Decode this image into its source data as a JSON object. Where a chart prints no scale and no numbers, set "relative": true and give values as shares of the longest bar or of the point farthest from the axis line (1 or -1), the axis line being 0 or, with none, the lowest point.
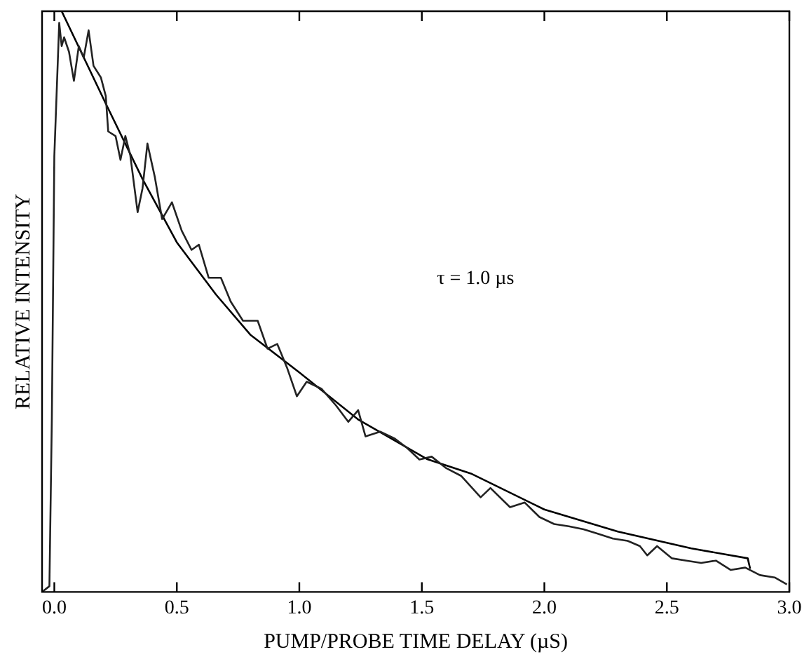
{
  "chart_data": {
    "type": "line",
    "relative": true,
    "xlabel": "PUMP/PROBE TIME DELAY (µS)",
    "ylabel": "RELATIVE INTENSITY",
    "annotations": [
      "τ = 1.0 µs"
    ],
    "xlim": [
      -0.05,
      3.0
    ],
    "xticks": [
      {
        "value": 0,
        "label": "0.0"
      },
      {
        "value": 0.5,
        "label": "0.5"
      },
      {
        "value": 1,
        "label": "1.0"
      },
      {
        "value": 1.5,
        "label": "1.5"
      },
      {
        "value": 2,
        "label": "2.0"
      },
      {
        "value": 2.5,
        "label": "2.5"
      },
      {
        "value": 3,
        "label": "3.0"
      }
    ],
    "grid": false,
    "legend": false,
    "marker": "none",
    "line_style": "solid",
    "series": [
      {
        "type": "line",
        "color": "#222222",
        "x": [
          -0.05,
          -0.02,
          -0.01,
          0.0,
          0.02,
          0.03,
          0.04,
          0.06,
          0.08,
          0.1,
          0.12,
          0.14,
          0.16,
          0.19,
          0.21,
          0.22,
          0.25,
          0.27,
          0.29,
          0.31,
          0.34,
          0.36,
          0.38,
          0.41,
          0.44,
          0.48,
          0.52,
          0.56,
          0.59,
          0.63,
          0.68,
          0.72,
          0.77,
          0.83,
          0.87,
          0.91,
          0.95,
          0.99,
          1.03,
          1.09,
          1.15,
          1.2,
          1.24,
          1.27,
          1.33,
          1.39,
          1.44,
          1.49,
          1.54,
          1.6,
          1.66,
          1.74,
          1.78,
          1.86,
          1.92,
          1.98,
          2.04,
          2.1,
          2.16,
          2.22,
          2.28,
          2.34,
          2.39,
          2.42,
          2.46,
          2.52,
          2.58,
          2.64,
          2.7,
          2.76,
          2.82,
          2.88,
          2.94,
          2.99
        ],
        "values": [
          0,
          0.01,
          0.3,
          0.75,
          0.98,
          0.94,
          0.955,
          0.93,
          0.88,
          0.94,
          0.92,
          0.967,
          0.906,
          0.886,
          0.854,
          0.793,
          0.785,
          0.744,
          0.785,
          0.752,
          0.654,
          0.695,
          0.772,
          0.715,
          0.642,
          0.671,
          0.622,
          0.589,
          0.598,
          0.541,
          0.541,
          0.5,
          0.467,
          0.467,
          0.419,
          0.427,
          0.386,
          0.337,
          0.362,
          0.35,
          0.321,
          0.293,
          0.313,
          0.268,
          0.276,
          0.264,
          0.248,
          0.228,
          0.233,
          0.213,
          0.2,
          0.163,
          0.179,
          0.146,
          0.154,
          0.129,
          0.117,
          0.113,
          0.108,
          0.1,
          0.092,
          0.088,
          0.079,
          0.063,
          0.079,
          0.058,
          0.054,
          0.05,
          0.054,
          0.038,
          0.042,
          0.029,
          0.025,
          0.013
        ]
      },
      {
        "type": "line",
        "color": "#000000",
        "x": [
          0.03,
          0.21,
          0.36,
          0.5,
          0.66,
          0.8,
          1.0,
          1.24,
          1.52,
          1.7,
          2.0,
          2.3,
          2.6,
          2.83,
          2.84
        ],
        "values": [
          1.0,
          0.841,
          0.711,
          0.602,
          0.512,
          0.443,
          0.378,
          0.297,
          0.229,
          0.204,
          0.142,
          0.104,
          0.075,
          0.058,
          0.04
        ]
      }
    ]
  }
}
